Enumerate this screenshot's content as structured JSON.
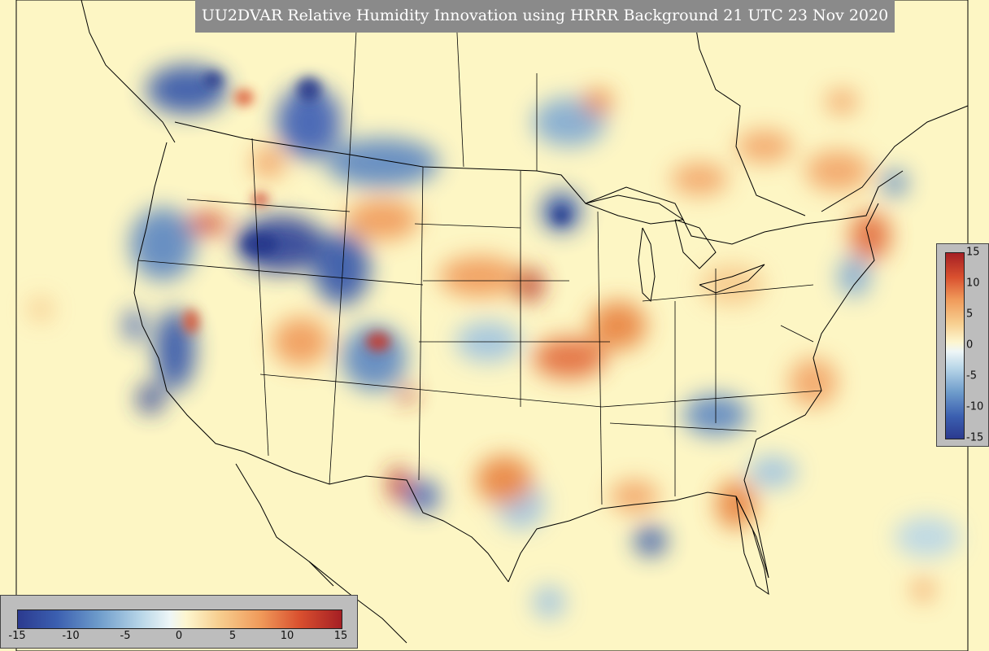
{
  "title": "UU2DVAR Relative Humidity Innovation using HRRR Background 21 UTC 23 Nov 2020",
  "colorbar": {
    "ticks": [
      "-15",
      "-10",
      "-5",
      "0",
      "5",
      "10",
      "15"
    ],
    "min": -15,
    "max": 15,
    "colors": {
      "low": "#2b3a8f",
      "mid": "#fdf6cf",
      "high": "#a51f24"
    }
  }
}
